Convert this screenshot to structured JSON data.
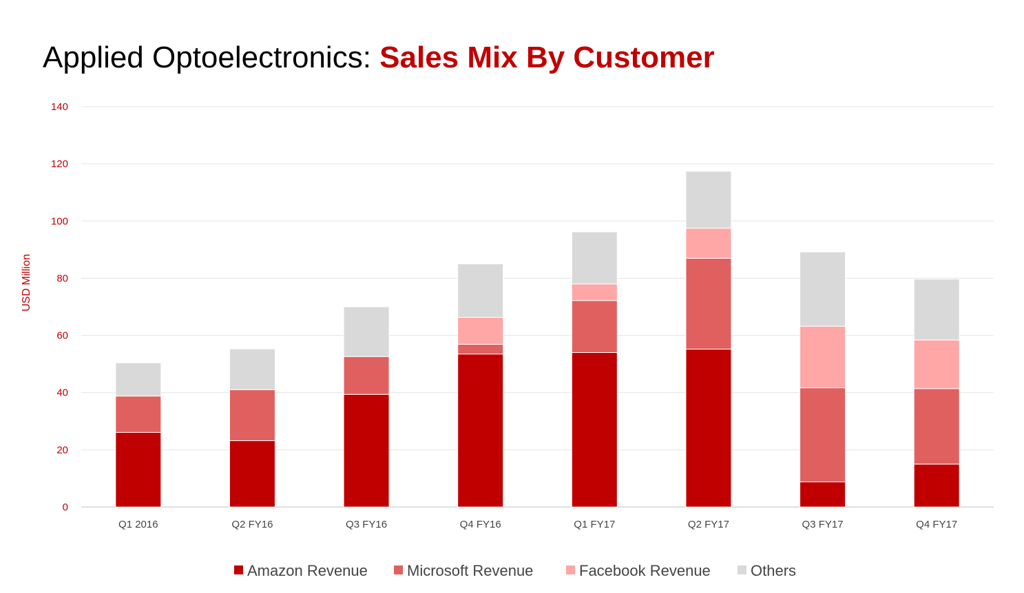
{
  "slide": {
    "title_prefix": "Applied Optoelectronics: ",
    "title_highlight": "Sales Mix By Customer"
  },
  "chart_data": {
    "type": "bar",
    "stacked": true,
    "title": "Applied Optoelectronics: Sales Mix By Customer",
    "xlabel": "",
    "ylabel": "USD Million",
    "ylim": [
      0,
      140
    ],
    "yticks": [
      0,
      20,
      40,
      60,
      80,
      100,
      120,
      140
    ],
    "grid": true,
    "legend_position": "bottom",
    "categories": [
      "Q1 2016",
      "Q2 FY16",
      "Q3 FY16",
      "Q4 FY16",
      "Q1 FY17",
      "Q2 FY17",
      "Q3 FY17",
      "Q4 FY17"
    ],
    "series": [
      {
        "name": "Amazon Revenue",
        "color": "#c00000",
        "values": [
          26.1,
          23.2,
          39.4,
          53.5,
          54.0,
          55.2,
          8.8,
          15.0
        ]
      },
      {
        "name": "Microsoft Revenue",
        "color": "#e06060",
        "values": [
          12.7,
          17.8,
          13.2,
          3.4,
          18.2,
          31.8,
          32.9,
          26.4
        ]
      },
      {
        "name": "Facebook Revenue",
        "color": "#ffa6a6",
        "values": [
          0,
          0,
          0,
          9.4,
          5.8,
          10.5,
          21.5,
          17.0
        ]
      },
      {
        "name": "Others",
        "color": "#d9d9d9",
        "values": [
          11.6,
          14.3,
          17.4,
          18.7,
          18.2,
          19.9,
          26.0,
          21.3
        ]
      }
    ]
  }
}
